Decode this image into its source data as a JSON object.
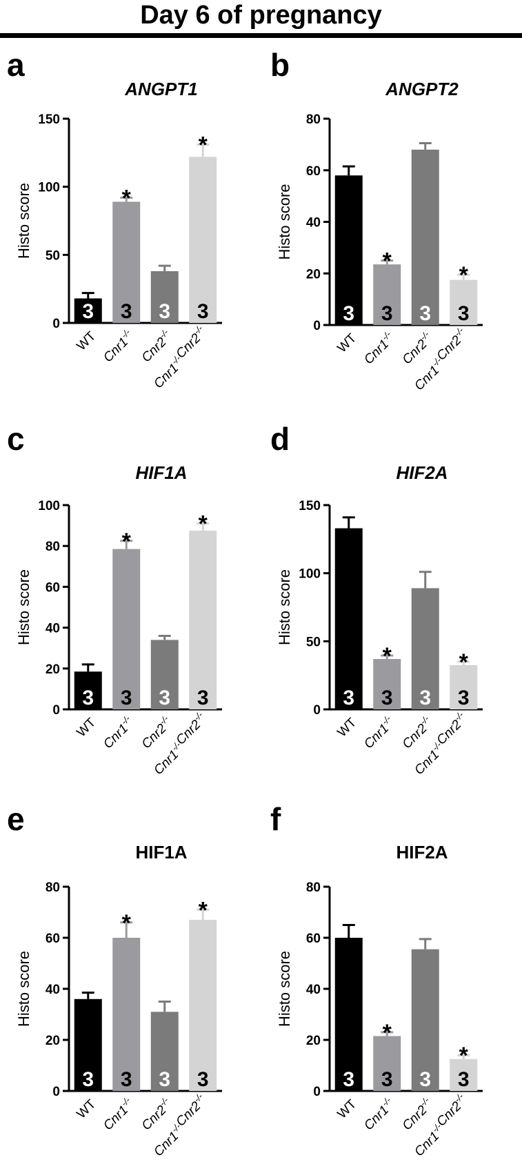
{
  "figure": {
    "title": "Day 6 of pregnancy"
  },
  "common": {
    "ylabel": "Histo score",
    "n_label": "3",
    "significance_marker": "*",
    "categories": [
      "WT",
      "Cnr1-/-",
      "Cnr2-/-",
      "Cnr1-/-Cnr2-/-"
    ],
    "bar_colors": [
      "#000000",
      "#9a9a9f",
      "#7b7b7b",
      "#d4d4d4"
    ],
    "n_label_colors": [
      "#ffffff",
      "#000000",
      "#ffffff",
      "#000000"
    ]
  },
  "chart_data": [
    {
      "panel_letter": "a",
      "type": "bar",
      "title": "ANGPT1",
      "title_italic": true,
      "ylabel": "Histo score",
      "ylim": [
        0,
        150
      ],
      "yticks": [
        0,
        50,
        100,
        150
      ],
      "categories": [
        "WT",
        "Cnr1-/-",
        "Cnr2-/-",
        "Cnr1-/-Cnr2-/-"
      ],
      "values": [
        18,
        89,
        38,
        122
      ],
      "errors": [
        4,
        3,
        4,
        9
      ],
      "significant": [
        false,
        true,
        false,
        true
      ],
      "n": [
        3,
        3,
        3,
        3
      ]
    },
    {
      "panel_letter": "b",
      "type": "bar",
      "title": "ANGPT2",
      "title_italic": true,
      "ylabel": "Histo score",
      "ylim": [
        0,
        80
      ],
      "yticks": [
        0,
        20,
        40,
        60,
        80
      ],
      "categories": [
        "WT",
        "Cnr1-/-",
        "Cnr2-/-",
        "Cnr1-/-Cnr2-/-"
      ],
      "values": [
        58,
        23.5,
        68,
        17.5
      ],
      "errors": [
        3.5,
        1.5,
        2.5,
        2
      ],
      "significant": [
        false,
        true,
        false,
        true
      ],
      "n": [
        3,
        3,
        3,
        3
      ]
    },
    {
      "panel_letter": "c",
      "type": "bar",
      "title": "HIF1A",
      "title_italic": true,
      "ylabel": "Histo score",
      "ylim": [
        0,
        100
      ],
      "yticks": [
        0,
        20,
        40,
        60,
        80,
        100
      ],
      "categories": [
        "WT",
        "Cnr1-/-",
        "Cnr2-/-",
        "Cnr1-/-Cnr2-/-"
      ],
      "values": [
        18.5,
        78.5,
        34,
        87.5
      ],
      "errors": [
        3.5,
        4,
        2,
        3.5
      ],
      "significant": [
        false,
        true,
        false,
        true
      ],
      "n": [
        3,
        3,
        3,
        3
      ]
    },
    {
      "panel_letter": "d",
      "type": "bar",
      "title": "HIF2A",
      "title_italic": true,
      "ylabel": "Histo score",
      "ylim": [
        0,
        150
      ],
      "yticks": [
        0,
        50,
        100,
        150
      ],
      "categories": [
        "WT",
        "Cnr1-/-",
        "Cnr2-/-",
        "Cnr1-/-Cnr2-/-"
      ],
      "values": [
        133,
        37,
        89,
        32.5
      ],
      "errors": [
        8,
        2.5,
        12,
        2.5
      ],
      "significant": [
        false,
        true,
        false,
        true
      ],
      "n": [
        3,
        3,
        3,
        3
      ]
    },
    {
      "panel_letter": "e",
      "type": "bar",
      "title": "HIF1A",
      "title_italic": false,
      "ylabel": "Histo score",
      "ylim": [
        0,
        80
      ],
      "yticks": [
        0,
        20,
        40,
        60,
        80
      ],
      "categories": [
        "WT",
        "Cnr1-/-",
        "Cnr2-/-",
        "Cnr1-/-Cnr2-/-"
      ],
      "values": [
        36,
        60,
        31,
        67
      ],
      "errors": [
        2.5,
        6,
        4,
        4
      ],
      "significant": [
        false,
        true,
        false,
        true
      ],
      "n": [
        3,
        3,
        3,
        3
      ]
    },
    {
      "panel_letter": "f",
      "type": "bar",
      "title": "HIF2A",
      "title_italic": false,
      "ylabel": "Histo score",
      "ylim": [
        0,
        80
      ],
      "yticks": [
        0,
        20,
        40,
        60,
        80
      ],
      "categories": [
        "WT",
        "Cnr1-/-",
        "Cnr2-/-",
        "Cnr1-/-Cnr2-/-"
      ],
      "values": [
        60,
        21.5,
        55.5,
        12.5
      ],
      "errors": [
        5,
        1.5,
        4,
        1.5
      ],
      "significant": [
        false,
        true,
        false,
        true
      ],
      "n": [
        3,
        3,
        3,
        3
      ]
    }
  ]
}
